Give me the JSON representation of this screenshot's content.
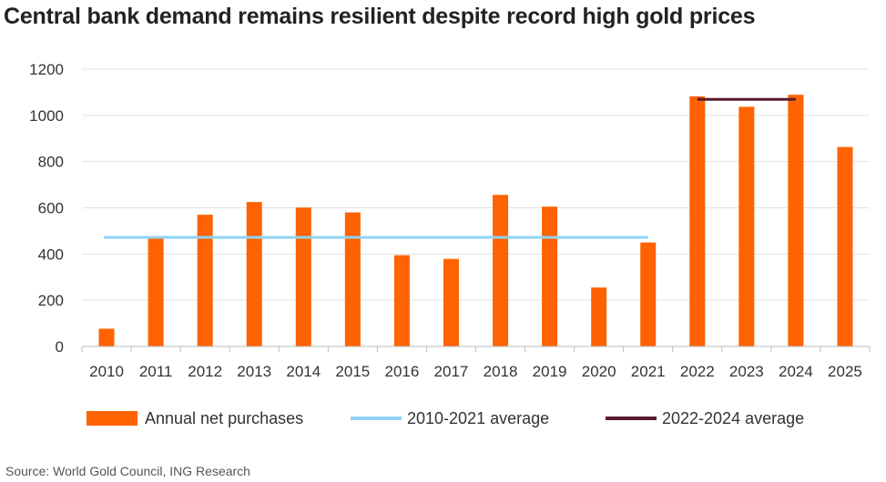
{
  "title": "Central bank demand remains resilient despite record high gold prices",
  "source": "Source: World Gold Council, ING Research",
  "colors": {
    "bar": "#ff6200",
    "avg1": "#8fd3f4",
    "avg2": "#5a1a2a",
    "grid": "#e2e2e2"
  },
  "legend": {
    "bars": "Annual net purchases",
    "avg1": "2010-2021 average",
    "avg2": "2022-2024 average"
  },
  "chart_data": {
    "type": "bar",
    "categories": [
      "2010",
      "2011",
      "2012",
      "2013",
      "2014",
      "2015",
      "2016",
      "2017",
      "2018",
      "2019",
      "2020",
      "2021",
      "2022",
      "2023",
      "2024",
      "2025"
    ],
    "series": [
      {
        "name": "Annual net purchases",
        "values": [
          77,
          474,
          570,
          625,
          601,
          580,
          395,
          379,
          656,
          605,
          255,
          450,
          1082,
          1037,
          1089,
          863
        ]
      }
    ],
    "reference_lines": [
      {
        "name": "2010-2021 average",
        "value": 472,
        "from": "2010",
        "to": "2021"
      },
      {
        "name": "2022-2024 average",
        "value": 1069,
        "from": "2022",
        "to": "2024"
      }
    ],
    "yticks": [
      "0",
      "200",
      "400",
      "600",
      "800",
      "1000",
      "1200"
    ],
    "ylim": [
      0,
      1200
    ],
    "grid": true,
    "legend_position": "bottom"
  }
}
